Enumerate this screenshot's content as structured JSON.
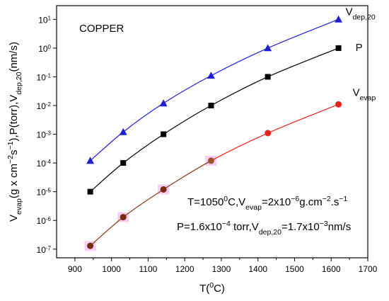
{
  "chart_data": {
    "type": "line",
    "x_scale": "linear",
    "y_scale": "log",
    "xlim": [
      850,
      1700
    ],
    "ylim": [
      5e-08,
      30
    ],
    "grid": false,
    "x_ticks": [
      900,
      1000,
      1100,
      1200,
      1300,
      1400,
      1500,
      1600,
      1700
    ],
    "x_tick_labels": [
      "900",
      "1000",
      "1100",
      "1200",
      "1300",
      "1400",
      "1500",
      "1600",
      "1700"
    ],
    "y_ticks": [
      1e-07,
      1e-06,
      1e-05,
      0.0001,
      0.001,
      0.01,
      0.1,
      1,
      10
    ],
    "y_tick_labels": [
      {
        "base": "10",
        "exp": "-7"
      },
      {
        "base": "10",
        "exp": "-6"
      },
      {
        "base": "10",
        "exp": "-5"
      },
      {
        "base": "10",
        "exp": "-4"
      },
      {
        "base": "10",
        "exp": "-3"
      },
      {
        "base": "10",
        "exp": "-2"
      },
      {
        "base": "10",
        "exp": "-1"
      },
      {
        "base": "10",
        "exp": "0"
      },
      {
        "base": "10",
        "exp": "1"
      }
    ],
    "xlabel": {
      "main": "T(",
      "sup": "0",
      "tail": "C)"
    },
    "ylabel": {
      "parts": [
        {
          "t": "V",
          "s": ""
        },
        {
          "t": "evap",
          "s": "sub"
        },
        {
          "t": "(g x cm",
          "s": ""
        },
        {
          "t": "−2",
          "s": "sup"
        },
        {
          "t": "s",
          "s": ""
        },
        {
          "t": "−1",
          "s": "sup"
        },
        {
          "t": "),P(torr),V",
          "s": ""
        },
        {
          "t": "dep,20",
          "s": "sub"
        },
        {
          "t": "(nm/s)",
          "s": ""
        }
      ]
    },
    "material_label": "COPPER",
    "annotation_line1": {
      "parts": [
        {
          "t": "T=1050",
          "s": ""
        },
        {
          "t": "0",
          "s": "sup"
        },
        {
          "t": "C,V",
          "s": ""
        },
        {
          "t": "evap",
          "s": "sub"
        },
        {
          "t": "=2x10",
          "s": ""
        },
        {
          "t": "−6",
          "s": "sup"
        },
        {
          "t": "g.cm",
          "s": ""
        },
        {
          "t": "−2",
          "s": "sup"
        },
        {
          "t": ".s",
          "s": ""
        },
        {
          "t": "−1",
          "s": "sup"
        }
      ]
    },
    "annotation_line2": {
      "parts": [
        {
          "t": "P=1.6x10",
          "s": ""
        },
        {
          "t": "−4",
          "s": "sup"
        },
        {
          "t": " torr,V",
          "s": ""
        },
        {
          "t": "dep,20",
          "s": "sub"
        },
        {
          "t": "=1.7x10",
          "s": ""
        },
        {
          "t": "−3",
          "s": "sup"
        },
        {
          "t": "nm/s",
          "s": ""
        }
      ]
    },
    "series": [
      {
        "name_main": "V",
        "name_sub": "dep,20",
        "marker": "triangle",
        "color": "#1f1fd6",
        "marker_color": "#1f1fd6",
        "x": [
          942,
          1032,
          1142,
          1272,
          1427,
          1620
        ],
        "y": [
          0.00012,
          0.0012,
          0.012,
          0.11,
          1.0,
          10.0
        ]
      },
      {
        "name_main": "P",
        "name_sub": "",
        "marker": "square",
        "color": "#000000",
        "marker_color": "#000000",
        "x": [
          942,
          1032,
          1142,
          1272,
          1427,
          1620
        ],
        "y": [
          1e-05,
          0.0001,
          0.001,
          0.01,
          0.1,
          1.0
        ]
      },
      {
        "name_main": "V",
        "name_sub": "evap",
        "marker": "circle",
        "color": "#e8231f",
        "marker_color": "#e8231f",
        "x": [
          942,
          1032,
          1142,
          1272,
          1427,
          1620
        ],
        "y": [
          1.3e-07,
          1.3e-06,
          1.2e-05,
          0.00012,
          0.0011,
          0.011
        ],
        "segment_colors": [
          "#8b3a1a",
          "#8b3a1a",
          "#8b3a1a",
          "#e8231f",
          "#e8231f"
        ],
        "point_colors": [
          "#7a2a10",
          "#7a2a10",
          "#7a2a10",
          "#a0522d",
          "#e8231f",
          "#e8231f"
        ],
        "highlight_color": "#f3c6ee"
      }
    ]
  }
}
